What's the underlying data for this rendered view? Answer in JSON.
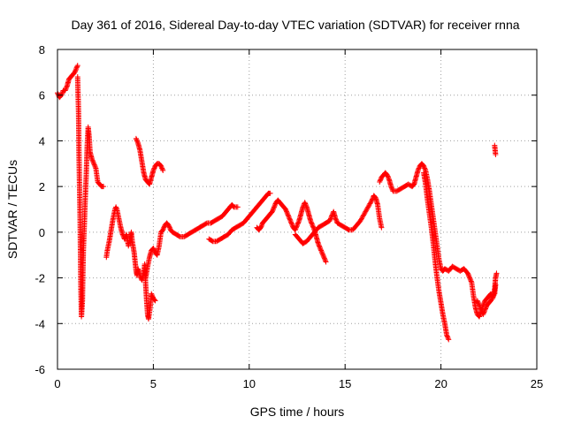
{
  "chart_data": {
    "type": "scatter",
    "title": "Day 361 of 2016, Sidereal Day-to-day VTEC variation (SDTVAR) for receiver rnna",
    "xlabel": "GPS time / hours",
    "ylabel": "SDTVAR / TECUs",
    "xlim": [
      0,
      25
    ],
    "ylim": [
      -6,
      8
    ],
    "xticks": [
      0,
      5,
      10,
      15,
      20,
      25
    ],
    "yticks": [
      -6,
      -4,
      -2,
      0,
      2,
      4,
      6,
      8
    ],
    "grid": true,
    "marker": "+",
    "color": "#ff0000",
    "segments": [
      [
        [
          0.0,
          6.1
        ],
        [
          0.1,
          5.9
        ],
        [
          0.2,
          6.0
        ],
        [
          0.3,
          6.2
        ],
        [
          0.4,
          6.2
        ],
        [
          0.5,
          6.4
        ],
        [
          0.6,
          6.7
        ],
        [
          0.7,
          6.8
        ],
        [
          0.8,
          6.9
        ],
        [
          0.9,
          7.0
        ],
        [
          1.0,
          7.2
        ],
        [
          1.05,
          7.3
        ]
      ],
      [
        [
          1.05,
          6.8
        ],
        [
          1.1,
          5.2
        ],
        [
          1.12,
          3.5
        ],
        [
          1.15,
          2.0
        ],
        [
          1.18,
          0.5
        ],
        [
          1.2,
          -1.0
        ],
        [
          1.22,
          -2.5
        ],
        [
          1.25,
          -3.7
        ],
        [
          1.3,
          -3.0
        ],
        [
          1.32,
          -2.0
        ],
        [
          1.35,
          -0.8
        ],
        [
          1.4,
          0.3
        ],
        [
          1.45,
          1.5
        ],
        [
          1.5,
          2.5
        ],
        [
          1.55,
          3.8
        ],
        [
          1.6,
          4.6
        ],
        [
          1.65,
          4.2
        ],
        [
          1.7,
          3.5
        ],
        [
          1.8,
          3.2
        ],
        [
          1.9,
          3.0
        ],
        [
          2.0,
          2.8
        ],
        [
          2.05,
          2.5
        ],
        [
          2.1,
          2.2
        ],
        [
          2.2,
          2.1
        ],
        [
          2.3,
          2.0
        ],
        [
          2.4,
          2.0
        ]
      ],
      [
        [
          2.55,
          -1.1
        ],
        [
          2.6,
          -0.8
        ],
        [
          2.7,
          -0.4
        ],
        [
          2.8,
          0.1
        ],
        [
          2.9,
          0.6
        ],
        [
          3.0,
          1.0
        ],
        [
          3.05,
          1.1
        ],
        [
          3.1,
          1.0
        ],
        [
          3.2,
          0.6
        ],
        [
          3.3,
          0.2
        ],
        [
          3.4,
          -0.1
        ],
        [
          3.5,
          -0.3
        ],
        [
          3.6,
          -0.1
        ],
        [
          3.7,
          -0.6
        ],
        [
          3.8,
          -0.2
        ],
        [
          3.85,
          0.0
        ],
        [
          3.9,
          -0.4
        ],
        [
          4.0,
          -0.9
        ],
        [
          4.05,
          -1.3
        ],
        [
          4.1,
          -1.7
        ],
        [
          4.15,
          -1.9
        ],
        [
          4.2,
          -1.6
        ],
        [
          4.3,
          -1.9
        ],
        [
          4.4,
          -2.1
        ],
        [
          4.5,
          -1.8
        ],
        [
          4.55,
          -1.4
        ],
        [
          4.6,
          -2.3
        ],
        [
          4.65,
          -3.0
        ],
        [
          4.7,
          -3.6
        ],
        [
          4.75,
          -3.8
        ],
        [
          4.8,
          -3.5
        ],
        [
          4.85,
          -3.2
        ],
        [
          4.9,
          -2.7
        ],
        [
          5.0,
          -2.9
        ],
        [
          5.1,
          -3.0
        ]
      ],
      [
        [
          4.1,
          4.1
        ],
        [
          4.2,
          3.9
        ],
        [
          4.3,
          3.6
        ],
        [
          4.4,
          3.1
        ],
        [
          4.5,
          2.6
        ],
        [
          4.6,
          2.3
        ],
        [
          4.7,
          2.2
        ],
        [
          4.8,
          2.1
        ],
        [
          4.9,
          2.4
        ],
        [
          5.0,
          2.7
        ],
        [
          5.1,
          2.9
        ],
        [
          5.2,
          3.0
        ],
        [
          5.3,
          3.0
        ],
        [
          5.4,
          2.9
        ],
        [
          5.5,
          2.7
        ]
      ],
      [
        [
          4.6,
          -2.0
        ],
        [
          4.7,
          -1.5
        ],
        [
          4.8,
          -1.1
        ],
        [
          4.9,
          -0.8
        ],
        [
          5.0,
          -0.7
        ],
        [
          5.1,
          -0.9
        ],
        [
          5.2,
          -1.0
        ],
        [
          5.3,
          -0.6
        ],
        [
          5.4,
          0.0
        ],
        [
          5.5,
          0.1
        ],
        [
          5.6,
          0.3
        ],
        [
          5.7,
          0.4
        ],
        [
          5.8,
          0.3
        ],
        [
          5.9,
          0.1
        ],
        [
          6.0,
          0.0
        ],
        [
          6.2,
          -0.1
        ],
        [
          6.4,
          -0.2
        ],
        [
          6.6,
          -0.2
        ],
        [
          6.8,
          -0.1
        ],
        [
          7.0,
          0.0
        ],
        [
          7.2,
          0.1
        ],
        [
          7.4,
          0.2
        ],
        [
          7.6,
          0.3
        ],
        [
          7.8,
          0.4
        ],
        [
          8.0,
          0.4
        ],
        [
          8.2,
          0.5
        ],
        [
          8.4,
          0.6
        ],
        [
          8.6,
          0.7
        ],
        [
          8.8,
          0.9
        ],
        [
          9.0,
          1.1
        ],
        [
          9.1,
          1.2
        ],
        [
          9.2,
          1.1
        ],
        [
          9.4,
          1.1
        ]
      ],
      [
        [
          7.9,
          -0.3
        ],
        [
          8.1,
          -0.4
        ],
        [
          8.3,
          -0.4
        ],
        [
          8.5,
          -0.3
        ],
        [
          8.7,
          -0.2
        ],
        [
          8.9,
          -0.1
        ],
        [
          9.1,
          0.1
        ],
        [
          9.3,
          0.2
        ],
        [
          9.5,
          0.3
        ],
        [
          9.7,
          0.4
        ],
        [
          9.9,
          0.6
        ],
        [
          10.1,
          0.8
        ],
        [
          10.3,
          1.0
        ],
        [
          10.5,
          1.2
        ],
        [
          10.7,
          1.4
        ],
        [
          10.9,
          1.6
        ],
        [
          11.0,
          1.7
        ],
        [
          11.1,
          1.7
        ]
      ],
      [
        [
          10.4,
          0.2
        ],
        [
          10.5,
          0.1
        ],
        [
          10.6,
          0.2
        ],
        [
          10.7,
          0.4
        ],
        [
          10.8,
          0.5
        ],
        [
          10.9,
          0.6
        ],
        [
          11.0,
          0.7
        ],
        [
          11.1,
          0.8
        ],
        [
          11.2,
          0.9
        ],
        [
          11.3,
          1.1
        ],
        [
          11.4,
          1.3
        ],
        [
          11.5,
          1.4
        ],
        [
          11.6,
          1.3
        ],
        [
          11.7,
          1.2
        ],
        [
          11.8,
          1.1
        ],
        [
          11.9,
          1.0
        ],
        [
          12.0,
          0.8
        ],
        [
          12.1,
          0.6
        ],
        [
          12.2,
          0.4
        ],
        [
          12.3,
          0.2
        ],
        [
          12.4,
          0.1
        ],
        [
          12.5,
          0.3
        ],
        [
          12.6,
          0.5
        ],
        [
          12.7,
          0.8
        ],
        [
          12.8,
          1.1
        ],
        [
          12.9,
          1.3
        ],
        [
          13.0,
          1.1
        ],
        [
          13.1,
          0.8
        ],
        [
          13.2,
          0.5
        ],
        [
          13.3,
          0.3
        ],
        [
          13.4,
          0.1
        ],
        [
          13.5,
          -0.2
        ],
        [
          13.6,
          -0.5
        ],
        [
          13.7,
          -0.7
        ],
        [
          13.8,
          -0.9
        ],
        [
          13.9,
          -1.1
        ],
        [
          14.0,
          -1.3
        ]
      ],
      [
        [
          12.4,
          -0.1
        ],
        [
          12.6,
          -0.3
        ],
        [
          12.8,
          -0.5
        ],
        [
          13.0,
          -0.4
        ],
        [
          13.2,
          -0.2
        ],
        [
          13.4,
          0.0
        ],
        [
          13.6,
          0.2
        ],
        [
          13.8,
          0.3
        ],
        [
          14.0,
          0.4
        ],
        [
          14.2,
          0.5
        ],
        [
          14.3,
          0.7
        ],
        [
          14.4,
          0.9
        ],
        [
          14.5,
          0.6
        ],
        [
          14.6,
          0.4
        ],
        [
          14.8,
          0.3
        ],
        [
          15.0,
          0.2
        ],
        [
          15.2,
          0.1
        ],
        [
          15.4,
          0.1
        ],
        [
          15.6,
          0.3
        ],
        [
          15.8,
          0.5
        ],
        [
          16.0,
          0.8
        ],
        [
          16.2,
          1.1
        ],
        [
          16.4,
          1.4
        ],
        [
          16.5,
          1.6
        ],
        [
          16.6,
          1.5
        ],
        [
          16.7,
          1.2
        ],
        [
          16.8,
          0.6
        ],
        [
          16.9,
          0.2
        ]
      ],
      [
        [
          16.8,
          2.2
        ],
        [
          16.9,
          2.4
        ],
        [
          17.0,
          2.5
        ],
        [
          17.1,
          2.6
        ],
        [
          17.2,
          2.5
        ],
        [
          17.3,
          2.3
        ],
        [
          17.4,
          2.0
        ],
        [
          17.5,
          1.8
        ],
        [
          17.7,
          1.8
        ],
        [
          17.9,
          1.9
        ],
        [
          18.1,
          2.0
        ],
        [
          18.3,
          2.1
        ],
        [
          18.5,
          2.0
        ],
        [
          18.6,
          2.1
        ],
        [
          18.7,
          2.4
        ],
        [
          18.8,
          2.7
        ],
        [
          18.9,
          2.9
        ],
        [
          19.0,
          3.0
        ],
        [
          19.1,
          2.9
        ],
        [
          19.2,
          2.7
        ],
        [
          19.3,
          2.3
        ],
        [
          19.4,
          1.8
        ],
        [
          19.5,
          1.2
        ],
        [
          19.6,
          0.6
        ],
        [
          19.7,
          0.0
        ],
        [
          19.8,
          -0.6
        ],
        [
          19.9,
          -1.2
        ],
        [
          20.0,
          -1.6
        ],
        [
          20.1,
          -1.7
        ],
        [
          20.2,
          -1.6
        ],
        [
          20.4,
          -1.7
        ],
        [
          20.6,
          -1.5
        ],
        [
          20.8,
          -1.6
        ],
        [
          21.0,
          -1.7
        ],
        [
          21.2,
          -1.6
        ],
        [
          21.4,
          -1.8
        ],
        [
          21.6,
          -2.2
        ],
        [
          21.7,
          -2.8
        ],
        [
          21.8,
          -3.3
        ],
        [
          21.9,
          -3.6
        ],
        [
          22.0,
          -3.7
        ],
        [
          22.1,
          -3.5
        ],
        [
          22.2,
          -3.2
        ],
        [
          22.3,
          -3.0
        ],
        [
          22.4,
          -2.9
        ],
        [
          22.5,
          -2.8
        ],
        [
          22.6,
          -2.7
        ],
        [
          22.7,
          -2.9
        ],
        [
          22.8,
          -2.5
        ],
        [
          22.85,
          -2.0
        ],
        [
          22.9,
          -1.8
        ]
      ],
      [
        [
          19.1,
          2.6
        ],
        [
          19.2,
          2.1
        ],
        [
          19.3,
          1.4
        ],
        [
          19.4,
          0.8
        ],
        [
          19.5,
          0.2
        ],
        [
          19.6,
          -0.5
        ],
        [
          19.7,
          -1.3
        ],
        [
          19.8,
          -2.0
        ],
        [
          19.9,
          -2.6
        ],
        [
          20.0,
          -3.1
        ],
        [
          20.1,
          -3.6
        ],
        [
          20.2,
          -4.0
        ],
        [
          20.3,
          -4.5
        ],
        [
          20.4,
          -4.7
        ]
      ],
      [
        [
          21.9,
          -3.0
        ],
        [
          22.0,
          -3.2
        ],
        [
          22.2,
          -3.6
        ],
        [
          22.4,
          -3.2
        ],
        [
          22.6,
          -3.0
        ],
        [
          22.8,
          -2.7
        ],
        [
          22.85,
          -2.3
        ]
      ],
      [
        [
          22.8,
          3.8
        ],
        [
          22.85,
          3.4
        ]
      ]
    ]
  }
}
